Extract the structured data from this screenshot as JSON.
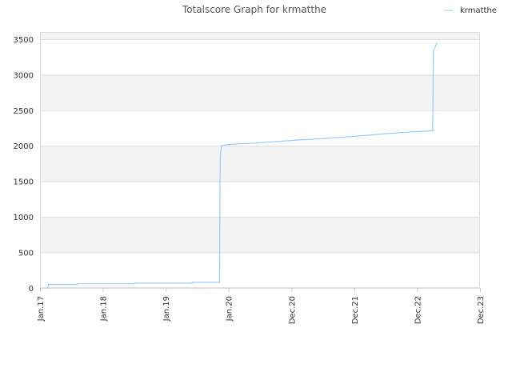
{
  "chart_data": {
    "type": "line",
    "title": "Totalscore Graph for krmatthe",
    "xlabel": "",
    "ylabel": "",
    "ylim": [
      0,
      3600
    ],
    "y_ticks": [
      0,
      500,
      1000,
      1500,
      2000,
      2500,
      3000,
      3500
    ],
    "x_ticks": [
      "Jan.17",
      "Jan.18",
      "Jan.19",
      "Jan.20",
      "Dec.20",
      "Dec.21",
      "Dec.22",
      "Dec.23"
    ],
    "grid": true,
    "alternating_bands": true,
    "legend_position": "top-right",
    "colors": {
      "series": "#99ccff",
      "band": "#f3f3f3",
      "grid": "#dddddd"
    },
    "series": [
      {
        "name": "krmatthe",
        "points": [
          [
            "2017-02-15",
            0
          ],
          [
            "2017-02-20",
            50
          ],
          [
            "2017-08-01",
            50
          ],
          [
            "2017-08-05",
            60
          ],
          [
            "2018-07-01",
            60
          ],
          [
            "2018-07-05",
            70
          ],
          [
            "2019-06-01",
            70
          ],
          [
            "2019-06-05",
            80
          ],
          [
            "2019-11-10",
            80
          ],
          [
            "2019-11-12",
            1500
          ],
          [
            "2019-11-14",
            1850
          ],
          [
            "2019-11-20",
            2000
          ],
          [
            "2020-01-01",
            2020
          ],
          [
            "2020-06-01",
            2040
          ],
          [
            "2021-01-01",
            2080
          ],
          [
            "2021-06-01",
            2100
          ],
          [
            "2022-01-01",
            2140
          ],
          [
            "2022-06-01",
            2170
          ],
          [
            "2022-12-01",
            2200
          ],
          [
            "2023-03-01",
            2210
          ],
          [
            "2023-03-05",
            3330
          ],
          [
            "2023-03-25",
            3440
          ]
        ]
      }
    ]
  }
}
